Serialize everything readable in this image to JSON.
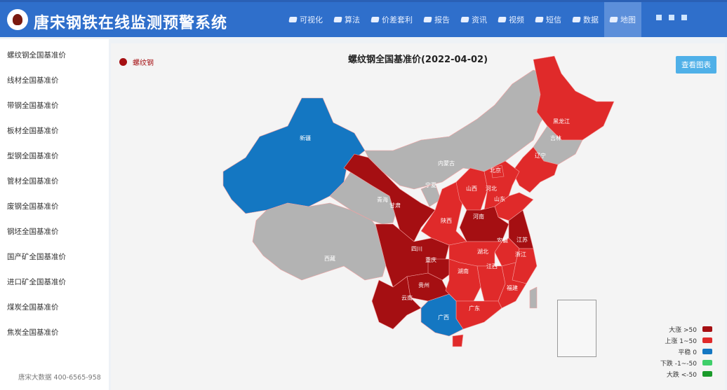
{
  "header": {
    "title": "唐宋钢铁在线监测预警系统",
    "nav": [
      {
        "label": "可视化"
      },
      {
        "label": "算法"
      },
      {
        "label": "价差套利"
      },
      {
        "label": "报告"
      },
      {
        "label": "资讯"
      },
      {
        "label": "视频"
      },
      {
        "label": "短信"
      },
      {
        "label": "数据"
      },
      {
        "label": "地图",
        "active": true
      }
    ]
  },
  "sidebar": {
    "items": [
      "螺纹钢全国基准价",
      "线材全国基准价",
      "带钢全国基准价",
      "板材全国基准价",
      "型钢全国基准价",
      "管材全国基准价",
      "废钢全国基准价",
      "钢坯全国基准价",
      "国产矿全国基准价",
      "进口矿全国基准价",
      "煤炭全国基准价",
      "焦炭全国基准价"
    ],
    "footer": "唐宋大数据 400-6565-958"
  },
  "main": {
    "title": "螺纹钢全国基准价(2022-04-02)",
    "series_label": "螺纹钢",
    "view_chart_button": "查看图表",
    "legend": [
      {
        "label": "大涨 >50",
        "color": "#a50f12",
        "level": "big_up"
      },
      {
        "label": "上涨 1~50",
        "color": "#e02a2a",
        "level": "up"
      },
      {
        "label": "平稳 0",
        "color": "#1477c2",
        "level": "flat"
      },
      {
        "label": "下跌 -1~-50",
        "color": "#3fcf6a",
        "level": "down"
      },
      {
        "label": "大跌 <-50",
        "color": "#1a9a2a",
        "level": "big_down"
      }
    ],
    "no_data_color": "#b3b3b3",
    "provinces": [
      {
        "name": "新疆",
        "level": "flat",
        "label": "新疆"
      },
      {
        "name": "西藏",
        "level": "none",
        "label": "西藏"
      },
      {
        "name": "青海",
        "level": "none",
        "label": "青海"
      },
      {
        "name": "甘肃",
        "level": "big_up",
        "label": "甘肃"
      },
      {
        "name": "内蒙古",
        "level": "none",
        "label": "内蒙古"
      },
      {
        "name": "黑龙江",
        "level": "up",
        "label": "黑龙江"
      },
      {
        "name": "吉林",
        "level": "none",
        "label": "吉林"
      },
      {
        "name": "辽宁",
        "level": "up",
        "label": "辽宁"
      },
      {
        "name": "宁夏",
        "level": "none",
        "label": "宁夏"
      },
      {
        "name": "陕西",
        "level": "up",
        "label": "陕西"
      },
      {
        "name": "山西",
        "level": "up",
        "label": "山西"
      },
      {
        "name": "河北",
        "level": "up",
        "label": "河北"
      },
      {
        "name": "北京",
        "level": "up",
        "label": "北京"
      },
      {
        "name": "山东",
        "level": "up",
        "label": "山东"
      },
      {
        "name": "河南",
        "level": "big_up",
        "label": "河南"
      },
      {
        "name": "江苏",
        "level": "big_up",
        "label": "江苏"
      },
      {
        "name": "安徽",
        "level": "up",
        "label": "安徽"
      },
      {
        "name": "浙江",
        "level": "up",
        "label": "浙江"
      },
      {
        "name": "湖北",
        "level": "up",
        "label": "湖北"
      },
      {
        "name": "四川",
        "level": "big_up",
        "label": "四川"
      },
      {
        "name": "重庆",
        "level": "big_up",
        "label": "重庆"
      },
      {
        "name": "贵州",
        "level": "big_up",
        "label": "贵州"
      },
      {
        "name": "云南",
        "level": "big_up",
        "label": "云南"
      },
      {
        "name": "湖南",
        "level": "up",
        "label": "湖南"
      },
      {
        "name": "江西",
        "level": "up",
        "label": "江西"
      },
      {
        "name": "福建",
        "level": "up",
        "label": "福建"
      },
      {
        "name": "广东",
        "level": "up",
        "label": "广东"
      },
      {
        "name": "广西",
        "level": "flat",
        "label": "广西"
      },
      {
        "name": "海南",
        "level": "up",
        "label": ""
      },
      {
        "name": "台湾",
        "level": "none",
        "label": ""
      }
    ]
  }
}
